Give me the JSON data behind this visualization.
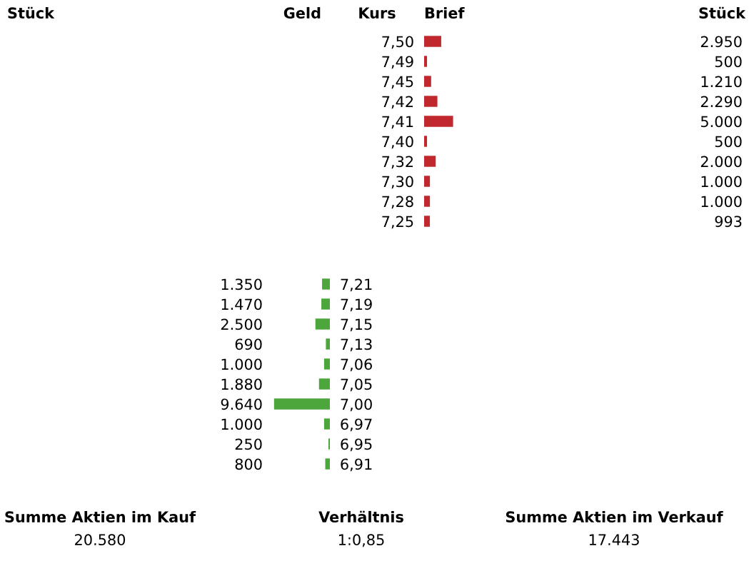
{
  "chart_data": [
    {
      "type": "bar",
      "orientation": "horizontal",
      "tick_labels": "y",
      "color": "#c0282d",
      "categories": [
        "7,50",
        "7,49",
        "7,45",
        "7,42",
        "7,41",
        "7,40",
        "7,32",
        "7,30",
        "7,28",
        "7,25"
      ],
      "values": [
        2950,
        500,
        1210,
        2290,
        5000,
        500,
        2000,
        1000,
        1000,
        993
      ],
      "value_labels": [
        "2.950",
        "500",
        "1.210",
        "2.290",
        "5.000",
        "500",
        "2.000",
        "1.000",
        "1.000",
        "993"
      ],
      "annotations": [
        "Stück",
        "Geld",
        "Kurs",
        "Brief",
        "Stück"
      ]
    },
    {
      "type": "bar",
      "orientation": "horizontal",
      "tick_labels": "y",
      "color": "#4ca63c",
      "categories": [
        "7,21",
        "7,19",
        "7,15",
        "7,13",
        "7,06",
        "7,05",
        "7,00",
        "6,97",
        "6,95",
        "6,91"
      ],
      "values": [
        1350,
        1470,
        2500,
        690,
        1000,
        1880,
        9640,
        1000,
        250,
        800
      ],
      "value_labels": [
        "1.350",
        "1.470",
        "2.500",
        "690",
        "1.000",
        "1.880",
        "9.640",
        "1.000",
        "250",
        "800"
      ]
    },
    {
      "type": "other",
      "annotations": [
        "Summe Aktien im Kauf",
        "20.580",
        "Verhältnis",
        "1:0,85",
        "Summe Aktien im Verkauf",
        "17.443"
      ]
    }
  ]
}
